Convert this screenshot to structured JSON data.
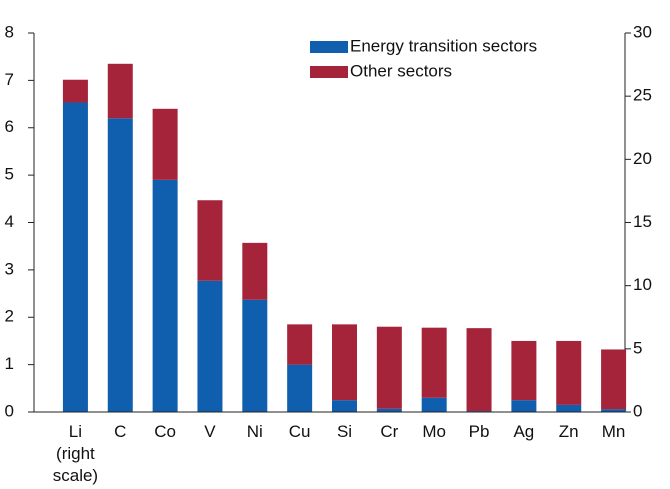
{
  "chart_data": {
    "type": "stacked_bar",
    "categories": [
      "Li (right scale)",
      "C",
      "Co",
      "V",
      "Ni",
      "Cu",
      "Si",
      "Cr",
      "Mo",
      "Pb",
      "Ag",
      "Zn",
      "Mn"
    ],
    "category_axis": [
      "y2",
      "y",
      "y",
      "y",
      "y",
      "y",
      "y",
      "y",
      "y",
      "y",
      "y",
      "y",
      "y"
    ],
    "series": [
      {
        "name": "Energy transition sectors",
        "color": "#0f5fae",
        "values": [
          24.5,
          6.2,
          4.9,
          2.77,
          2.37,
          1.0,
          0.25,
          0.07,
          0.3,
          0.02,
          0.25,
          0.15,
          0.06
        ]
      },
      {
        "name": "Other sectors",
        "color": "#a6243a",
        "values": [
          1.8,
          1.15,
          1.5,
          1.7,
          1.2,
          0.85,
          1.6,
          1.73,
          1.48,
          1.75,
          1.25,
          1.35,
          1.26
        ]
      }
    ],
    "ylim": [
      0,
      8
    ],
    "yticks": [
      0,
      1,
      2,
      3,
      4,
      5,
      6,
      7,
      8
    ],
    "y2lim": [
      0,
      30
    ],
    "y2ticks": [
      0,
      5,
      10,
      15,
      20,
      25,
      30
    ],
    "grid": false,
    "legend": "top"
  }
}
